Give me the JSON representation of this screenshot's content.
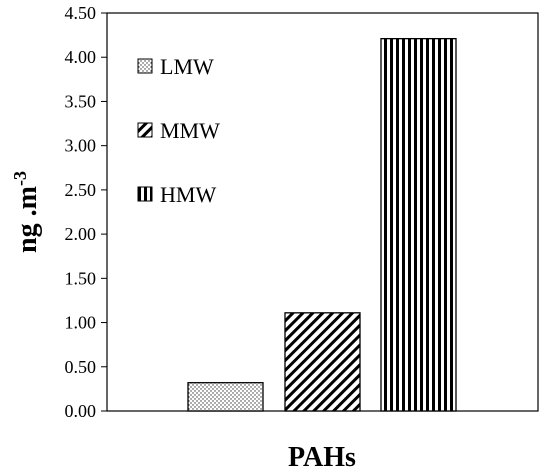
{
  "chart_data": {
    "type": "bar",
    "categories": [
      "LMW",
      "MMW",
      "HMW"
    ],
    "values": [
      0.32,
      1.11,
      4.21
    ],
    "xlabel": "PAHs",
    "ylabel": {
      "base": "ng .m",
      "superscript": "-3"
    },
    "ylim": [
      0,
      4.5
    ],
    "yticks": [
      "0.00",
      "0.50",
      "1.00",
      "1.50",
      "2.00",
      "2.50",
      "3.00",
      "3.50",
      "4.00",
      "4.50"
    ],
    "legend": [
      "LMW",
      "MMW",
      "HMW"
    ],
    "legend_placement": "top-left",
    "grid": false,
    "patterns": [
      "dots",
      "diagonal",
      "vertical"
    ]
  }
}
